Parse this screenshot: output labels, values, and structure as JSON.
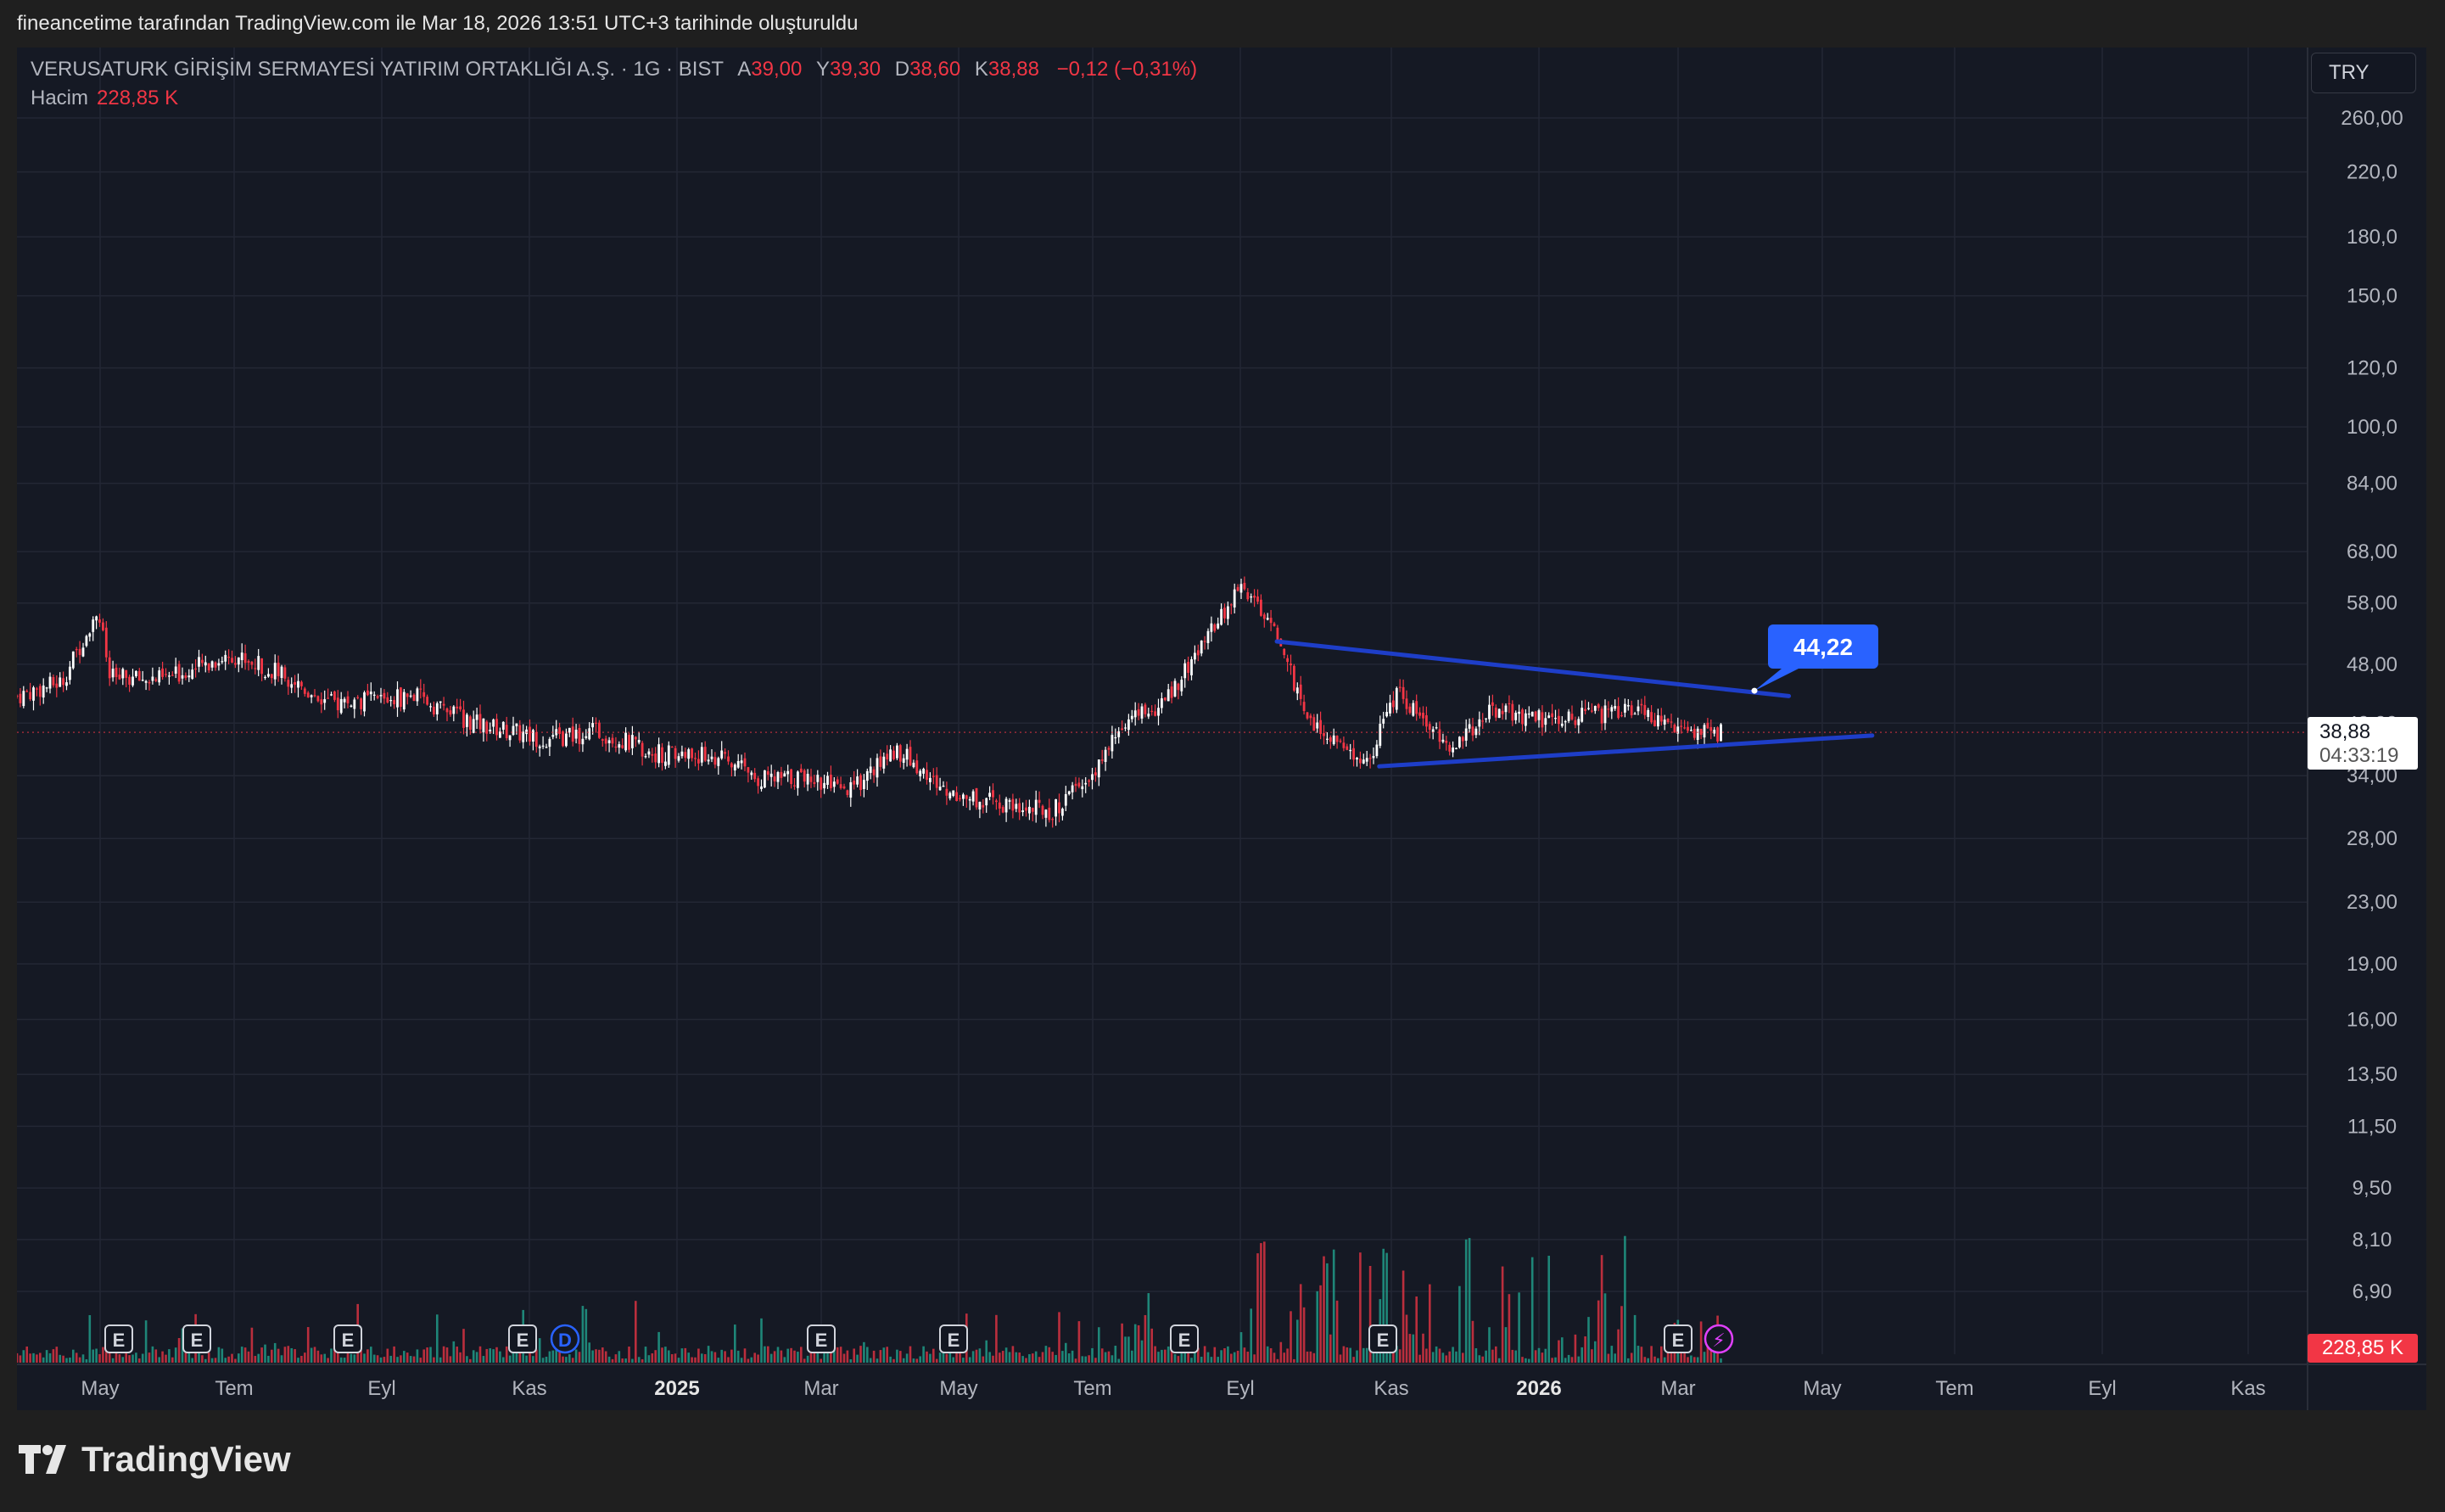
{
  "header": {
    "created_line": "fineancetime tarafından TradingView.com ile Mar 18, 2026 13:51 UTC+3 tarihinde oluşturuldu"
  },
  "legend": {
    "symbol": "VERUSATURK GİRİŞİM SERMAYESİ YATIRIM ORTAKLIĞI A.Ş. · 1G · BIST",
    "open_label": "A",
    "open": "39,00",
    "high_label": "Y",
    "high": "39,30",
    "low_label": "D",
    "low": "38,60",
    "close_label": "K",
    "close": "38,88",
    "change": "−0,12 (−0,31%)",
    "volume_label": "Hacim",
    "volume": "228,85 K"
  },
  "currency": "TRY",
  "last_price": {
    "value": "38,88",
    "countdown": "04:33:19"
  },
  "volume_tag": "228,85 K",
  "annotation": {
    "text": "44,22"
  },
  "brand": "TradingView",
  "colors": {
    "up": "#ffffff",
    "down": "#f23645",
    "vol_up": "#22ab94",
    "vol_down": "#f23645",
    "trendline": "#1e3ec8",
    "callout": "#2962ff",
    "background": "#151924"
  },
  "chart_data": {
    "type": "candlestick",
    "scale": "log",
    "y_ticks": [
      "260,00",
      "220,0",
      "180,0",
      "150,0",
      "120,0",
      "100,0",
      "84,00",
      "68,00",
      "58,00",
      "48,00",
      "40,00",
      "34,00",
      "28,00",
      "23,00",
      "19,00",
      "16,00",
      "13,50",
      "11,50",
      "9,50",
      "8,10",
      "6,90"
    ],
    "x_ticks": [
      "May",
      "Tem",
      "Eyl",
      "Kas",
      "2025",
      "Mar",
      "May",
      "Tem",
      "Eyl",
      "Kas",
      "2026",
      "Mar",
      "May",
      "Tem",
      "Eyl",
      "Kas"
    ],
    "x_tick_bold": [
      "2025",
      "2026"
    ],
    "events": [
      "E",
      "E",
      "E",
      "E",
      "D",
      "E",
      "E",
      "E",
      "E",
      "E",
      "⚡"
    ],
    "close_anchors": [
      [
        "2024-04-01",
        43.5
      ],
      [
        "2024-04-20",
        45.5
      ],
      [
        "2024-05-05",
        57
      ],
      [
        "2024-05-10",
        46
      ],
      [
        "2024-06-01",
        45.8
      ],
      [
        "2024-07-01",
        49.5
      ],
      [
        "2024-07-25",
        46
      ],
      [
        "2024-08-10",
        42.5
      ],
      [
        "2024-09-15",
        43.5
      ],
      [
        "2024-10-10",
        40
      ],
      [
        "2024-11-10",
        38
      ],
      [
        "2024-12-01",
        39
      ],
      [
        "2024-12-25",
        36.5
      ],
      [
        "2025-01-20",
        36
      ],
      [
        "2025-02-10",
        33.5
      ],
      [
        "2025-02-28",
        34
      ],
      [
        "2025-03-15",
        32
      ],
      [
        "2025-04-05",
        37
      ],
      [
        "2025-04-25",
        32.5
      ],
      [
        "2025-05-20",
        31
      ],
      [
        "2025-06-10",
        30.5
      ],
      [
        "2025-06-25",
        33.5
      ],
      [
        "2025-07-10",
        40
      ],
      [
        "2025-07-25",
        42
      ],
      [
        "2025-08-10",
        50
      ],
      [
        "2025-08-28",
        61
      ],
      [
        "2025-09-10",
        55
      ],
      [
        "2025-09-25",
        40
      ],
      [
        "2025-10-20",
        35.5
      ],
      [
        "2025-11-01",
        44
      ],
      [
        "2025-11-25",
        37
      ],
      [
        "2025-12-10",
        42
      ],
      [
        "2026-01-01",
        40.5
      ],
      [
        "2026-01-25",
        41
      ],
      [
        "2026-02-10",
        41.5
      ],
      [
        "2026-02-25",
        39
      ],
      [
        "2026-03-18",
        38.88
      ]
    ],
    "trendlines": [
      {
        "from": [
          "2025-09-12",
          51.5
        ],
        "to": [
          "2026-04-15",
          43.5
        ]
      },
      {
        "from": [
          "2025-10-25",
          35.0
        ],
        "to": [
          "2026-05-20",
          38.5
        ]
      }
    ],
    "callout_price": 44.22
  }
}
